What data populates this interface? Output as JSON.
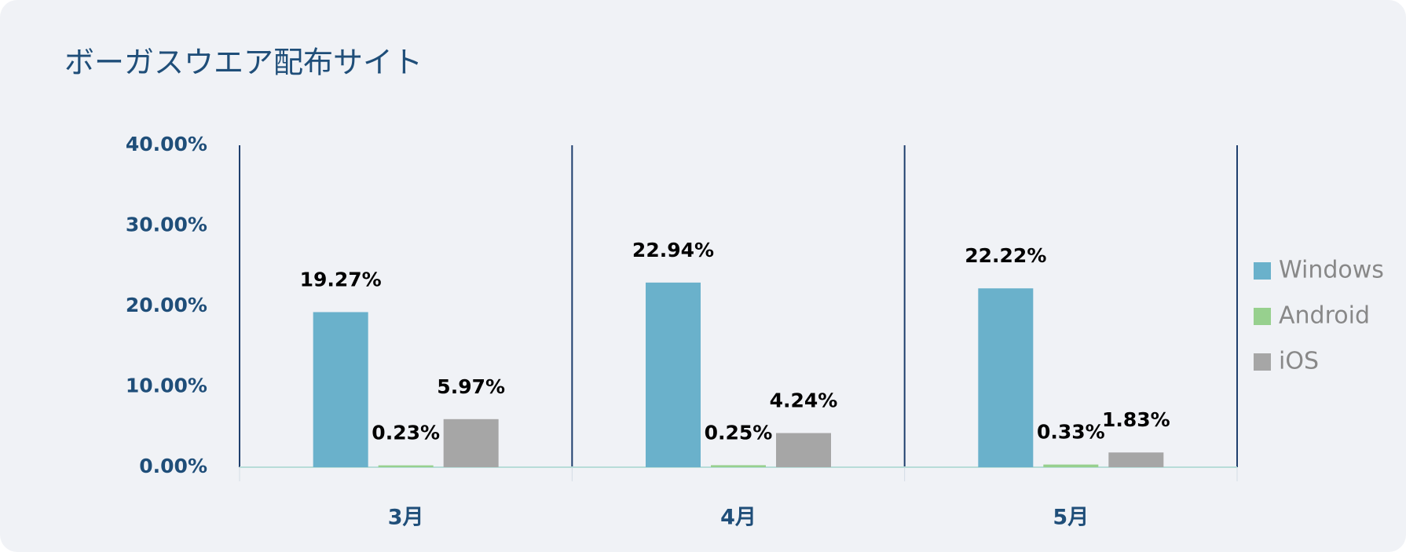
{
  "chart_data": {
    "type": "bar",
    "title": "ボーガスウエア配布サイト",
    "categories": [
      "3月",
      "4月",
      "5月"
    ],
    "series": [
      {
        "name": "Windows",
        "color": "#6ab1cb",
        "values": [
          19.27,
          22.94,
          22.22
        ],
        "value_labels": [
          "19.27%",
          "22.94%",
          "22.22%"
        ]
      },
      {
        "name": "Android",
        "color": "#97d08e",
        "values": [
          0.23,
          0.25,
          0.33
        ],
        "value_labels": [
          "0.23%",
          "0.25%",
          "0.33%"
        ]
      },
      {
        "name": "iOS",
        "color": "#a6a6a6",
        "values": [
          5.97,
          4.24,
          1.83
        ],
        "value_labels": [
          "5.97%",
          "4.24%",
          "1.83%"
        ]
      }
    ],
    "ylim": [
      0,
      40
    ],
    "yticks": [
      {
        "value": 0,
        "label": "0.00%"
      },
      {
        "value": 10,
        "label": "10.00%"
      },
      {
        "value": 20,
        "label": "20.00%"
      },
      {
        "value": 30,
        "label": "30.00%"
      },
      {
        "value": 40,
        "label": "40.00%"
      }
    ],
    "legend": "right"
  }
}
